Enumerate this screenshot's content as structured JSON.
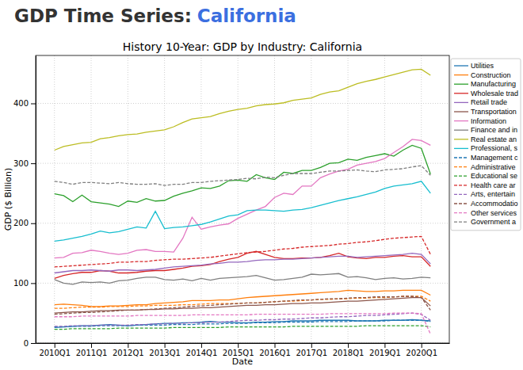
{
  "header": {
    "text": "GDP Time Series:",
    "highlight": "California"
  },
  "chart_data": {
    "type": "line",
    "title": "History 10-Year: GDP by Industry: California",
    "x_label": "Date",
    "y_label": "GDP ($ Billion)",
    "categories": [
      "2010Q1",
      null,
      null,
      null,
      "2011Q1",
      null,
      null,
      null,
      "2012Q1",
      null,
      null,
      null,
      "2013Q1",
      null,
      null,
      null,
      "2014Q1",
      null,
      null,
      null,
      "2015Q1",
      null,
      null,
      null,
      "2016Q1",
      null,
      null,
      null,
      "2017Q1",
      null,
      null,
      null,
      "2018Q1",
      null,
      null,
      null,
      "2019Q1",
      null,
      null,
      null,
      "2020Q1",
      null
    ],
    "ylim": [
      0,
      480
    ],
    "yticks": [
      0,
      100,
      200,
      300,
      400
    ],
    "grid": true,
    "legend": "right",
    "series": [
      {
        "name": "Utilities",
        "color": "#1f77b4",
        "line_style": "solid",
        "values": [
          26,
          27,
          28,
          29,
          29,
          30,
          31,
          30,
          29,
          30,
          31,
          32,
          33,
          33,
          34,
          34,
          35,
          36,
          35,
          35,
          34,
          34,
          35,
          35,
          36,
          36,
          37,
          37,
          37,
          38,
          38,
          38,
          38,
          37,
          37,
          37,
          38,
          38,
          38,
          39,
          38,
          37
        ]
      },
      {
        "name": "Construction",
        "color": "#ff7f0e",
        "line_style": "solid",
        "values": [
          64,
          65,
          64,
          63,
          61,
          61,
          62,
          62,
          63,
          64,
          64,
          66,
          67,
          68,
          69,
          71,
          71,
          71,
          72,
          72,
          74,
          76,
          77,
          78,
          79,
          80,
          81,
          82,
          83,
          84,
          85,
          86,
          88,
          87,
          86,
          86,
          87,
          87,
          88,
          88,
          88,
          80
        ]
      },
      {
        "name": "Manufacturing",
        "color": "#2ca02c",
        "line_style": "solid",
        "values": [
          249,
          246,
          236,
          247,
          236,
          234,
          232,
          228,
          237,
          235,
          241,
          237,
          238,
          245,
          250,
          254,
          259,
          258,
          262,
          271,
          272,
          270,
          281,
          276,
          273,
          285,
          283,
          288,
          288,
          293,
          300,
          301,
          307,
          305,
          310,
          313,
          316,
          312,
          322,
          330,
          325,
          282
        ]
      },
      {
        "name": "Wholesale trad",
        "color": "#d62728",
        "line_style": "solid",
        "values": [
          108,
          113,
          116,
          118,
          118,
          121,
          120,
          117,
          117,
          118,
          120,
          121,
          121,
          123,
          125,
          128,
          129,
          131,
          136,
          140,
          143,
          150,
          153,
          148,
          143,
          141,
          141,
          142,
          142,
          143,
          146,
          150,
          144,
          142,
          141,
          143,
          143,
          145,
          146,
          144,
          144,
          128
        ]
      },
      {
        "name": "Retail trade",
        "color": "#9467bd",
        "line_style": "solid",
        "values": [
          117,
          119,
          121,
          121,
          122,
          121,
          120,
          122,
          122,
          121,
          122,
          123,
          125,
          127,
          128,
          129,
          130,
          132,
          133,
          135,
          135,
          136,
          138,
          139,
          139,
          140,
          140,
          141,
          142,
          143,
          144,
          145,
          145,
          143,
          144,
          145,
          146,
          147,
          148,
          150,
          148,
          132
        ]
      },
      {
        "name": "Transportation",
        "color": "#8c564b",
        "line_style": "solid",
        "values": [
          50,
          51,
          52,
          52,
          53,
          54,
          54,
          55,
          55,
          55,
          56,
          56,
          57,
          57,
          58,
          58,
          59,
          59,
          60,
          61,
          62,
          63,
          63,
          64,
          64,
          65,
          66,
          66,
          67,
          67,
          68,
          69,
          70,
          70,
          71,
          72,
          73,
          74,
          75,
          76,
          76,
          62
        ]
      },
      {
        "name": "Information",
        "color": "#e377c2",
        "line_style": "solid",
        "values": [
          142,
          143,
          150,
          151,
          155,
          153,
          150,
          148,
          150,
          155,
          156,
          153,
          153,
          152,
          175,
          210,
          190,
          194,
          197,
          199,
          208,
          215,
          222,
          228,
          243,
          250,
          248,
          262,
          262,
          276,
          282,
          287,
          290,
          297,
          300,
          303,
          308,
          318,
          328,
          340,
          338,
          330
        ]
      },
      {
        "name": "Finance and in",
        "color": "#7f7f7f",
        "line_style": "solid",
        "values": [
          106,
          100,
          98,
          102,
          101,
          102,
          100,
          104,
          105,
          108,
          110,
          110,
          106,
          105,
          107,
          104,
          108,
          105,
          108,
          109,
          110,
          111,
          113,
          109,
          105,
          106,
          108,
          110,
          115,
          114,
          115,
          116,
          110,
          111,
          109,
          106,
          108,
          109,
          107,
          108,
          110,
          109
        ]
      },
      {
        "name": "Real estate an",
        "color": "#bcbd22",
        "line_style": "solid",
        "values": [
          322,
          328,
          331,
          334,
          335,
          341,
          343,
          346,
          348,
          349,
          352,
          354,
          356,
          361,
          368,
          374,
          376,
          378,
          383,
          387,
          390,
          392,
          396,
          398,
          399,
          401,
          405,
          407,
          409,
          415,
          419,
          421,
          427,
          433,
          437,
          440,
          444,
          448,
          452,
          456,
          457,
          447
        ]
      },
      {
        "name": "Professional, s",
        "color": "#17becf",
        "line_style": "solid",
        "values": [
          170,
          172,
          175,
          178,
          182,
          187,
          184,
          186,
          190,
          194,
          192,
          220,
          191,
          193,
          194,
          196,
          198,
          202,
          207,
          212,
          214,
          221,
          222,
          222,
          221,
          220,
          222,
          223,
          226,
          230,
          234,
          238,
          241,
          244,
          248,
          252,
          258,
          262,
          264,
          266,
          270,
          250
        ]
      },
      {
        "name": "Management c",
        "color": "#1f77b4",
        "line_style": "dashed",
        "values": [
          27,
          27,
          28,
          28,
          28,
          29,
          29,
          29,
          29,
          30,
          30,
          30,
          30,
          31,
          31,
          31,
          32,
          32,
          32,
          33,
          33,
          33,
          34,
          34,
          34,
          35,
          35,
          35,
          35,
          36,
          36,
          36,
          36,
          37,
          37,
          37,
          37,
          38,
          38,
          38,
          38,
          36
        ]
      },
      {
        "name": "Administrative",
        "color": "#ff7f0e",
        "line_style": "dashed",
        "values": [
          58,
          58,
          59,
          60,
          60,
          60,
          61,
          61,
          61,
          62,
          62,
          63,
          63,
          63,
          64,
          64,
          65,
          66,
          66,
          66,
          66,
          67,
          67,
          68,
          69,
          70,
          70,
          71,
          72,
          73,
          73,
          74,
          74,
          75,
          75,
          76,
          76,
          77,
          78,
          78,
          78,
          70
        ]
      },
      {
        "name": "Educational se",
        "color": "#2ca02c",
        "line_style": "dashed",
        "values": [
          23,
          23,
          24,
          24,
          24,
          24,
          24,
          25,
          25,
          25,
          25,
          25,
          25,
          26,
          26,
          26,
          26,
          26,
          26,
          27,
          27,
          27,
          27,
          27,
          27,
          27,
          28,
          28,
          28,
          28,
          28,
          28,
          28,
          28,
          29,
          29,
          29,
          29,
          29,
          29,
          29,
          27
        ]
      },
      {
        "name": "Health care ar",
        "color": "#d62728",
        "line_style": "dashed",
        "values": [
          127,
          128,
          129,
          130,
          131,
          132,
          133,
          135,
          135,
          136,
          136,
          138,
          139,
          140,
          140,
          141,
          142,
          143,
          145,
          147,
          149,
          151,
          152,
          153,
          155,
          157,
          158,
          160,
          161,
          162,
          163,
          165,
          166,
          168,
          169,
          171,
          173,
          175,
          176,
          177,
          178,
          148
        ]
      },
      {
        "name": "Arts, entertain",
        "color": "#9467bd",
        "line_style": "dashed",
        "values": [
          28,
          28,
          29,
          29,
          29,
          30,
          30,
          30,
          30,
          31,
          31,
          32,
          32,
          33,
          33,
          34,
          34,
          35,
          35,
          36,
          37,
          38,
          38,
          39,
          39,
          40,
          40,
          41,
          42,
          42,
          43,
          44,
          44,
          45,
          46,
          46,
          47,
          48,
          49,
          50,
          48,
          38
        ]
      },
      {
        "name": "Accommodatio",
        "color": "#8c564b",
        "line_style": "dashed",
        "values": [
          48,
          49,
          50,
          51,
          51,
          52,
          53,
          54,
          55,
          55,
          56,
          57,
          58,
          59,
          60,
          61,
          62,
          63,
          64,
          65,
          66,
          67,
          67,
          68,
          69,
          70,
          71,
          72,
          72,
          73,
          74,
          74,
          75,
          76,
          76,
          77,
          77,
          77,
          78,
          78,
          76,
          55
        ]
      },
      {
        "name": "Other services",
        "color": "#e377c2",
        "line_style": "dashed",
        "values": [
          44,
          44,
          44,
          45,
          45,
          45,
          45,
          45,
          45,
          46,
          46,
          46,
          46,
          46,
          46,
          47,
          47,
          47,
          47,
          47,
          47,
          47,
          48,
          48,
          48,
          48,
          48,
          48,
          48,
          48,
          49,
          49,
          49,
          49,
          49,
          49,
          49,
          50,
          50,
          50,
          49,
          15
        ]
      },
      {
        "name": "Government a",
        "color": "#7f7f7f",
        "line_style": "dashed",
        "values": [
          270,
          268,
          265,
          268,
          268,
          267,
          266,
          268,
          266,
          265,
          265,
          266,
          263,
          265,
          265,
          268,
          268,
          270,
          271,
          272,
          273,
          275,
          274,
          277,
          276,
          280,
          283,
          283,
          283,
          285,
          287,
          287,
          288,
          289,
          287,
          286,
          289,
          290,
          291,
          294,
          296,
          280
        ]
      }
    ]
  }
}
